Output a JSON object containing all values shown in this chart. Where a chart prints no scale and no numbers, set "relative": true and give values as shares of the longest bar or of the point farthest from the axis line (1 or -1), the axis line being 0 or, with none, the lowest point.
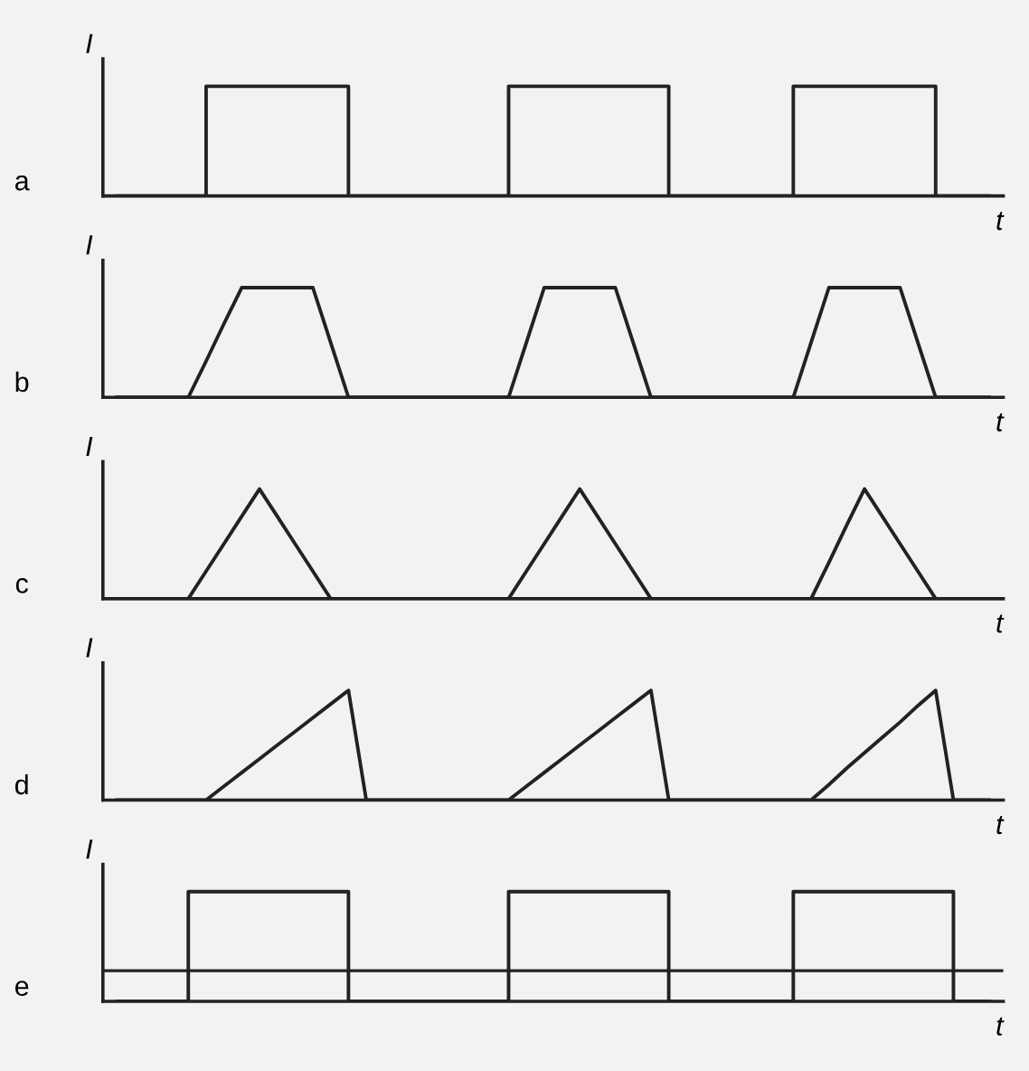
{
  "chart_data": [
    {
      "type": "step",
      "relative": true,
      "ylabel": "I",
      "xlabel": "t",
      "annotations": [
        "a"
      ],
      "color": "#222222",
      "categories": [
        null,
        null,
        null,
        null,
        null,
        null,
        null,
        null,
        null,
        null,
        null,
        null,
        null,
        null,
        null,
        null,
        null,
        null,
        null,
        null,
        null,
        null,
        null,
        null,
        null,
        null,
        null,
        null,
        null,
        null,
        null,
        null,
        null,
        null,
        null,
        null,
        null,
        null,
        null,
        null,
        null,
        null,
        null,
        null,
        null,
        null,
        null,
        null,
        null,
        null
      ],
      "values": [
        0,
        0,
        0,
        0,
        0,
        1,
        1,
        1,
        1,
        1,
        1,
        1,
        1,
        0,
        0,
        0,
        0,
        0,
        0,
        0,
        0,
        0,
        1,
        1,
        1,
        1,
        1,
        1,
        1,
        1,
        1,
        0,
        0,
        0,
        0,
        0,
        0,
        0,
        1,
        1,
        1,
        1,
        1,
        1,
        1,
        1,
        0,
        0,
        0,
        0
      ]
    },
    {
      "type": "line",
      "relative": true,
      "ylabel": "I",
      "xlabel": "t",
      "annotations": [
        "b"
      ],
      "color": "#222222",
      "categories": [
        null,
        null,
        null,
        null,
        null,
        null,
        null,
        null,
        null,
        null,
        null,
        null,
        null,
        null,
        null,
        null,
        null,
        null,
        null,
        null,
        null,
        null,
        null,
        null,
        null,
        null,
        null,
        null,
        null,
        null,
        null,
        null,
        null,
        null,
        null,
        null,
        null,
        null,
        null,
        null,
        null,
        null,
        null,
        null,
        null,
        null,
        null,
        null,
        null,
        null
      ],
      "values": [
        0,
        0,
        0,
        0,
        0,
        0.33,
        0.67,
        1,
        1,
        1,
        1,
        1,
        0.5,
        0,
        0,
        0,
        0,
        0,
        0,
        0,
        0,
        0,
        0,
        0.5,
        1,
        1,
        1,
        1,
        1,
        0.5,
        0,
        0,
        0,
        0,
        0,
        0,
        0,
        0,
        0,
        0.5,
        1,
        1,
        1,
        1,
        1,
        0.5,
        0,
        0,
        0,
        0
      ]
    },
    {
      "type": "line",
      "relative": true,
      "ylabel": "I",
      "xlabel": "t",
      "annotations": [
        "c"
      ],
      "color": "#222222",
      "categories": [
        null,
        null,
        null,
        null,
        null,
        null,
        null,
        null,
        null,
        null,
        null,
        null,
        null,
        null,
        null,
        null,
        null,
        null,
        null,
        null,
        null,
        null,
        null,
        null,
        null,
        null,
        null,
        null,
        null,
        null,
        null,
        null,
        null,
        null,
        null,
        null,
        null,
        null,
        null,
        null,
        null,
        null,
        null,
        null,
        null,
        null,
        null,
        null,
        null,
        null
      ],
      "values": [
        0,
        0,
        0,
        0,
        0,
        0.25,
        0.5,
        0.75,
        1,
        0.75,
        0.5,
        0.25,
        0,
        0,
        0,
        0,
        0,
        0,
        0,
        0,
        0,
        0,
        0,
        0.25,
        0.5,
        0.75,
        1,
        0.75,
        0.5,
        0.25,
        0,
        0,
        0,
        0,
        0,
        0,
        0,
        0,
        0,
        0,
        0.33,
        0.67,
        1,
        0.75,
        0.5,
        0.25,
        0,
        0,
        0,
        0
      ]
    },
    {
      "type": "line",
      "relative": true,
      "ylabel": "I",
      "xlabel": "t",
      "annotations": [
        "d"
      ],
      "color": "#222222",
      "categories": [
        null,
        null,
        null,
        null,
        null,
        null,
        null,
        null,
        null,
        null,
        null,
        null,
        null,
        null,
        null,
        null,
        null,
        null,
        null,
        null,
        null,
        null,
        null,
        null,
        null,
        null,
        null,
        null,
        null,
        null,
        null,
        null,
        null,
        null,
        null,
        null,
        null,
        null,
        null,
        null,
        null,
        null,
        null,
        null,
        null,
        null,
        null,
        null,
        null,
        null
      ],
      "values": [
        0,
        0,
        0,
        0,
        0,
        0,
        0.125,
        0.25,
        0.375,
        0.5,
        0.625,
        0.75,
        0.875,
        1,
        0,
        0,
        0,
        0,
        0,
        0,
        0,
        0,
        0,
        0.125,
        0.25,
        0.375,
        0.5,
        0.625,
        0.75,
        0.875,
        1,
        0,
        0,
        0,
        0,
        0,
        0,
        0,
        0,
        0,
        0.14,
        0.29,
        0.43,
        0.57,
        0.71,
        0.86,
        1,
        0,
        0,
        0
      ]
    },
    {
      "type": "step",
      "relative": true,
      "ylabel": "I",
      "xlabel": "t",
      "annotations": [
        "e"
      ],
      "color": "#222222",
      "ref_lines": [
        {
          "axis": "y",
          "value": 0.28,
          "color": "#222222"
        }
      ],
      "categories": [
        null,
        null,
        null,
        null,
        null,
        null,
        null,
        null,
        null,
        null,
        null,
        null,
        null,
        null,
        null,
        null,
        null,
        null,
        null,
        null,
        null,
        null,
        null,
        null,
        null,
        null,
        null,
        null,
        null,
        null,
        null,
        null,
        null,
        null,
        null,
        null,
        null,
        null,
        null,
        null,
        null,
        null,
        null,
        null,
        null,
        null,
        null,
        null,
        null,
        null
      ],
      "values": [
        0,
        0,
        0,
        0,
        1,
        1,
        1,
        1,
        1,
        1,
        1,
        1,
        1,
        0,
        0,
        0,
        0,
        0,
        0,
        0,
        0,
        0,
        1,
        1,
        1,
        1,
        1,
        1,
        1,
        1,
        1,
        0,
        0,
        0,
        0,
        0,
        0,
        0,
        1,
        1,
        1,
        1,
        1,
        1,
        1,
        1,
        1,
        0,
        0,
        0
      ]
    }
  ]
}
